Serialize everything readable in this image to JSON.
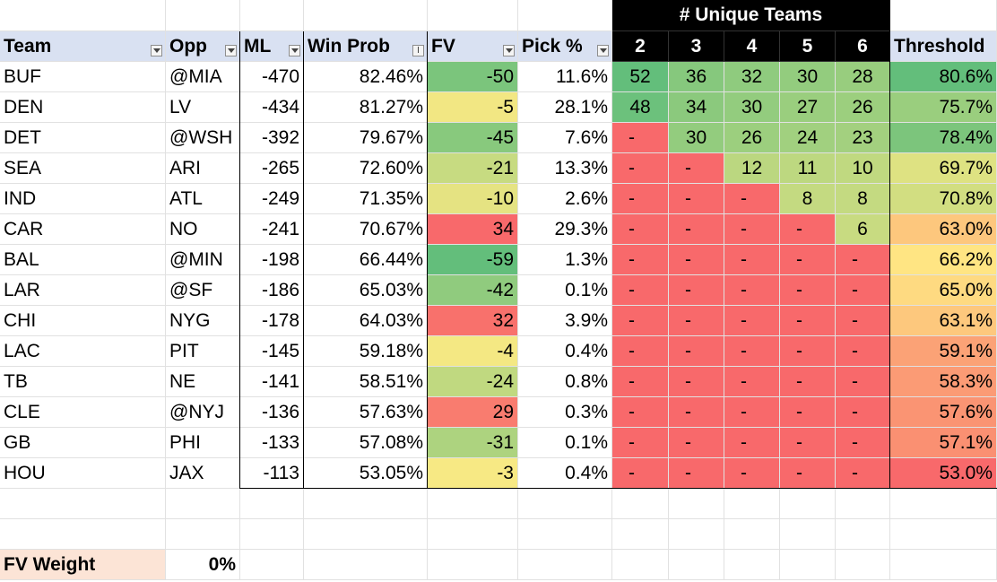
{
  "header": {
    "group_label": "# Unique Teams",
    "columns": [
      "Team",
      "Opp",
      "ML",
      "Win Prob",
      "FV",
      "Pick %",
      "2",
      "3",
      "4",
      "5",
      "6",
      "Threshold"
    ]
  },
  "colors": {
    "header_bg": "#d9e1f2",
    "unique_header_bg": "#000000",
    "green_dark": "#63be7b",
    "yellow": "#ffeb84",
    "red": "#f8696b",
    "fv_weight_bg": "#fce4d6"
  },
  "rows": [
    {
      "team": "BUF",
      "opp": "@MIA",
      "ml": "-470",
      "win_prob": "82.46%",
      "fv": "-50",
      "pick": "11.6%",
      "u": [
        "52",
        "36",
        "32",
        "30",
        "28"
      ],
      "threshold": "80.6%"
    },
    {
      "team": "DEN",
      "opp": "LV",
      "ml": "-434",
      "win_prob": "81.27%",
      "fv": "-5",
      "pick": "28.1%",
      "u": [
        "48",
        "34",
        "30",
        "27",
        "26"
      ],
      "threshold": "75.7%"
    },
    {
      "team": "DET",
      "opp": "@WSH",
      "ml": "-392",
      "win_prob": "79.67%",
      "fv": "-45",
      "pick": "7.6%",
      "u": [
        "-",
        "30",
        "26",
        "24",
        "23"
      ],
      "threshold": "78.4%"
    },
    {
      "team": "SEA",
      "opp": "ARI",
      "ml": "-265",
      "win_prob": "72.60%",
      "fv": "-21",
      "pick": "13.3%",
      "u": [
        "-",
        "-",
        "12",
        "11",
        "10"
      ],
      "threshold": "69.7%"
    },
    {
      "team": "IND",
      "opp": "ATL",
      "ml": "-249",
      "win_prob": "71.35%",
      "fv": "-10",
      "pick": "2.6%",
      "u": [
        "-",
        "-",
        "-",
        "8",
        "8"
      ],
      "threshold": "70.8%"
    },
    {
      "team": "CAR",
      "opp": "NO",
      "ml": "-241",
      "win_prob": "70.67%",
      "fv": "34",
      "pick": "29.3%",
      "u": [
        "-",
        "-",
        "-",
        "-",
        "6"
      ],
      "threshold": "63.0%"
    },
    {
      "team": "BAL",
      "opp": "@MIN",
      "ml": "-198",
      "win_prob": "66.44%",
      "fv": "-59",
      "pick": "1.3%",
      "u": [
        "-",
        "-",
        "-",
        "-",
        "-"
      ],
      "threshold": "66.2%"
    },
    {
      "team": "LAR",
      "opp": "@SF",
      "ml": "-186",
      "win_prob": "65.03%",
      "fv": "-42",
      "pick": "0.1%",
      "u": [
        "-",
        "-",
        "-",
        "-",
        "-"
      ],
      "threshold": "65.0%"
    },
    {
      "team": "CHI",
      "opp": "NYG",
      "ml": "-178",
      "win_prob": "64.03%",
      "fv": "32",
      "pick": "3.9%",
      "u": [
        "-",
        "-",
        "-",
        "-",
        "-"
      ],
      "threshold": "63.1%"
    },
    {
      "team": "LAC",
      "opp": "PIT",
      "ml": "-145",
      "win_prob": "59.18%",
      "fv": "-4",
      "pick": "0.4%",
      "u": [
        "-",
        "-",
        "-",
        "-",
        "-"
      ],
      "threshold": "59.1%"
    },
    {
      "team": "TB",
      "opp": "NE",
      "ml": "-141",
      "win_prob": "58.51%",
      "fv": "-24",
      "pick": "0.8%",
      "u": [
        "-",
        "-",
        "-",
        "-",
        "-"
      ],
      "threshold": "58.3%"
    },
    {
      "team": "CLE",
      "opp": "@NYJ",
      "ml": "-136",
      "win_prob": "57.63%",
      "fv": "29",
      "pick": "0.3%",
      "u": [
        "-",
        "-",
        "-",
        "-",
        "-"
      ],
      "threshold": "57.6%"
    },
    {
      "team": "GB",
      "opp": "PHI",
      "ml": "-133",
      "win_prob": "57.08%",
      "fv": "-31",
      "pick": "0.1%",
      "u": [
        "-",
        "-",
        "-",
        "-",
        "-"
      ],
      "threshold": "57.1%"
    },
    {
      "team": "HOU",
      "opp": "JAX",
      "ml": "-113",
      "win_prob": "53.05%",
      "fv": "-3",
      "pick": "0.4%",
      "u": [
        "-",
        "-",
        "-",
        "-",
        "-"
      ],
      "threshold": "53.0%"
    }
  ],
  "fv_weight": {
    "label": "FV Weight",
    "value": "0%"
  }
}
